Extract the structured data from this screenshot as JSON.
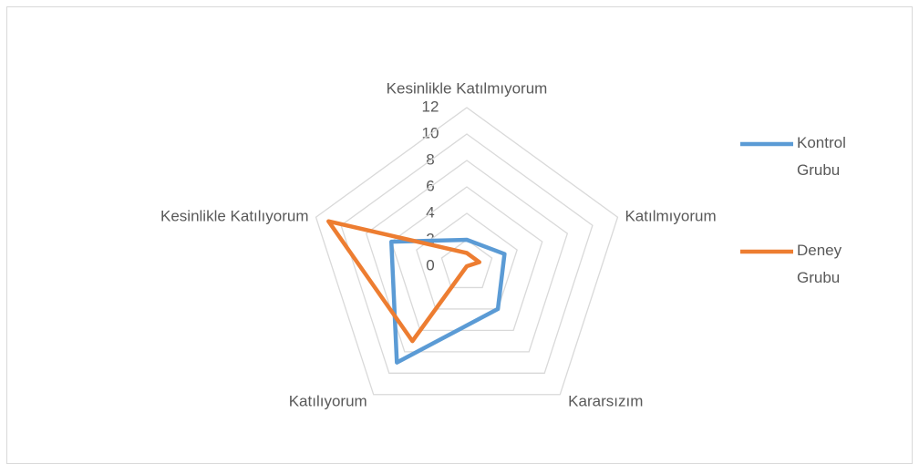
{
  "chart_data": {
    "type": "radar",
    "categories": [
      "Kesinlikle Katılmıyorum",
      "Katılmıyorum",
      "Kararsızım",
      "Katılıyorum",
      "Kesinlikle Katılıyorum"
    ],
    "series": [
      {
        "name": "Kontrol Grubu",
        "color": "#5b9bd5",
        "values": [
          2,
          3,
          4,
          9,
          6
        ]
      },
      {
        "name": "Deney Grubu",
        "color": "#ed7d31",
        "values": [
          1,
          1,
          0,
          7,
          11
        ]
      }
    ],
    "ylim": [
      0,
      12
    ],
    "yticks": [
      0,
      2,
      4,
      6,
      8,
      10,
      12
    ],
    "grid": true,
    "legend": "right"
  }
}
